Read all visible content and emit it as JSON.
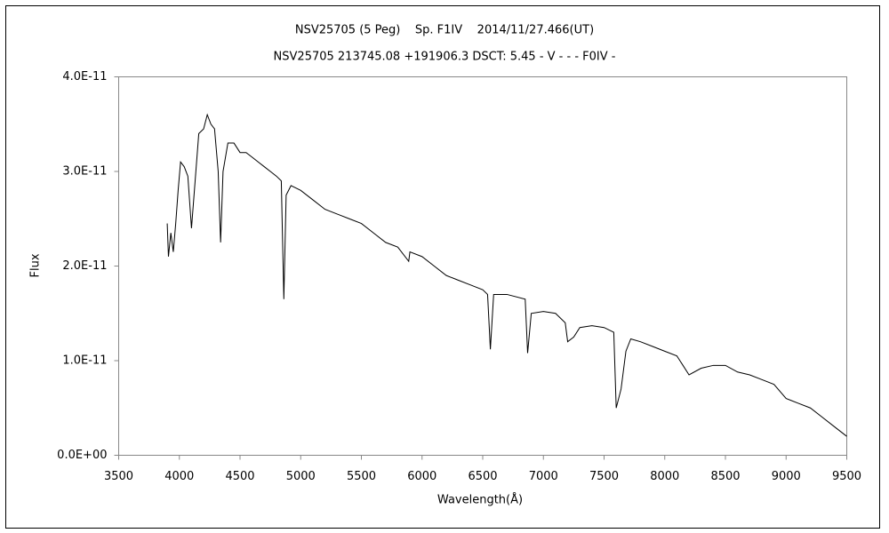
{
  "chart_data": {
    "type": "line",
    "title": "NSV25705 (5 Peg)    Sp. F1IV    2014/11/27.466(UT)",
    "subtitle": "NSV25705 213745.08 +191906.3 DSCT: 5.45 - V - - - F0IV -",
    "x_label": "Wavelength(Å)",
    "y_label": "Flux",
    "color": "#000000",
    "grid": false,
    "xlim": [
      3500,
      9500
    ],
    "xticks": [
      3500,
      4000,
      4500,
      5000,
      5500,
      6000,
      6500,
      7000,
      7500,
      8000,
      8500,
      9000,
      9500
    ],
    "ylim": [
      0,
      4e-11
    ],
    "yticks": [
      {
        "value": 0,
        "label": "0.0E+00"
      },
      {
        "value": 1e-11,
        "label": "1.0E-11"
      },
      {
        "value": 2e-11,
        "label": "2.0E-11"
      },
      {
        "value": 3e-11,
        "label": "3.0E-11"
      },
      {
        "value": 4e-11,
        "label": "4.0E-11"
      }
    ],
    "x": [
      3900,
      3910,
      3930,
      3950,
      3970,
      3990,
      4010,
      4040,
      4070,
      4100,
      4130,
      4160,
      4200,
      4230,
      4260,
      4290,
      4320,
      4340,
      4360,
      4400,
      4450,
      4500,
      4550,
      4600,
      4650,
      4700,
      4750,
      4800,
      4840,
      4861,
      4880,
      4920,
      5000,
      5100,
      5200,
      5300,
      5400,
      5500,
      5600,
      5700,
      5800,
      5890,
      5900,
      6000,
      6100,
      6200,
      6300,
      6400,
      6500,
      6540,
      6563,
      6590,
      6700,
      6850,
      6870,
      6900,
      7000,
      7100,
      7180,
      7200,
      7250,
      7300,
      7400,
      7500,
      7580,
      7600,
      7640,
      7680,
      7720,
      7800,
      7900,
      8000,
      8100,
      8150,
      8200,
      8300,
      8400,
      8500,
      8600,
      8700,
      8800,
      8900,
      9000,
      9100,
      9200,
      9300,
      9400,
      9500
    ],
    "values": [
      2.45e-11,
      2.1e-11,
      2.35e-11,
      2.15e-11,
      2.45e-11,
      2.8e-11,
      3.1e-11,
      3.05e-11,
      2.95e-11,
      2.4e-11,
      2.9e-11,
      3.4e-11,
      3.45e-11,
      3.6e-11,
      3.5e-11,
      3.45e-11,
      3e-11,
      2.25e-11,
      3e-11,
      3.3e-11,
      3.3e-11,
      3.2e-11,
      3.2e-11,
      3.15e-11,
      3.1e-11,
      3.05e-11,
      3e-11,
      2.95e-11,
      2.9e-11,
      1.65e-11,
      2.75e-11,
      2.85e-11,
      2.8e-11,
      2.7e-11,
      2.6e-11,
      2.55e-11,
      2.5e-11,
      2.45e-11,
      2.35e-11,
      2.25e-11,
      2.2e-11,
      2.05e-11,
      2.15e-11,
      2.1e-11,
      2e-11,
      1.9e-11,
      1.85e-11,
      1.8e-11,
      1.75e-11,
      1.7e-11,
      1.12e-11,
      1.7e-11,
      1.7e-11,
      1.65e-11,
      1.08e-11,
      1.5e-11,
      1.52e-11,
      1.5e-11,
      1.4e-11,
      1.2e-11,
      1.25e-11,
      1.35e-11,
      1.37e-11,
      1.35e-11,
      1.3e-11,
      5e-12,
      7e-12,
      1.1e-11,
      1.23e-11,
      1.2e-11,
      1.15e-11,
      1.1e-11,
      1.05e-11,
      9.5e-12,
      8.5e-12,
      9.2e-12,
      9.5e-12,
      9.5e-12,
      8.8e-12,
      8.5e-12,
      8e-12,
      7.5e-12,
      6e-12,
      5.5e-12,
      5e-12,
      4e-12,
      3e-12,
      2e-12
    ]
  }
}
